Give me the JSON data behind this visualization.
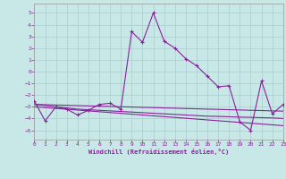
{
  "xlabel": "Windchill (Refroidissement éolien,°C)",
  "background_color": "#c8e8e8",
  "grid_color": "#aacccc",
  "line_color": "#882299",
  "x_values": [
    0,
    1,
    2,
    3,
    4,
    5,
    6,
    7,
    8,
    9,
    10,
    11,
    12,
    13,
    14,
    15,
    16,
    17,
    18,
    19,
    20,
    21,
    22,
    23
  ],
  "main_line": [
    -2.5,
    -4.2,
    -3.0,
    -3.2,
    -3.7,
    -3.3,
    -2.8,
    -2.7,
    -3.2,
    3.4,
    2.5,
    5.0,
    2.6,
    2.0,
    1.1,
    0.5,
    -0.4,
    -1.3,
    -1.2,
    -4.3,
    -5.0,
    -0.8,
    -3.6,
    -2.8
  ],
  "trend1": [
    -3.0,
    -3.07,
    -3.14,
    -3.21,
    -3.28,
    -3.35,
    -3.42,
    -3.49,
    -3.56,
    -3.63,
    -3.7,
    -3.77,
    -3.84,
    -3.91,
    -3.98,
    -4.05,
    -4.12,
    -4.19,
    -4.26,
    -4.33,
    -4.4,
    -4.47,
    -4.54,
    -4.61
  ],
  "trend2": [
    -2.8,
    -2.9,
    -3.0,
    -3.1,
    -3.2,
    -3.25,
    -3.3,
    -3.35,
    -3.4,
    -3.45,
    -3.5,
    -3.55,
    -3.6,
    -3.65,
    -3.7,
    -3.75,
    -3.8,
    -3.82,
    -3.85,
    -3.88,
    -3.9,
    -3.93,
    -3.95,
    -4.0
  ],
  "trend3": [
    -2.8,
    -2.82,
    -2.85,
    -2.87,
    -2.9,
    -2.92,
    -2.95,
    -2.97,
    -3.0,
    -3.02,
    -3.05,
    -3.07,
    -3.1,
    -3.12,
    -3.15,
    -3.17,
    -3.2,
    -3.22,
    -3.25,
    -3.27,
    -3.3,
    -3.32,
    -3.35,
    -3.37
  ],
  "ylim": [
    -5.8,
    5.8
  ],
  "xlim": [
    0,
    23
  ],
  "yticks": [
    -5,
    -4,
    -3,
    -2,
    -1,
    0,
    1,
    2,
    3,
    4,
    5
  ],
  "xticks": [
    0,
    1,
    2,
    3,
    4,
    5,
    6,
    7,
    8,
    9,
    10,
    11,
    12,
    13,
    14,
    15,
    16,
    17,
    18,
    19,
    20,
    21,
    22,
    23
  ]
}
